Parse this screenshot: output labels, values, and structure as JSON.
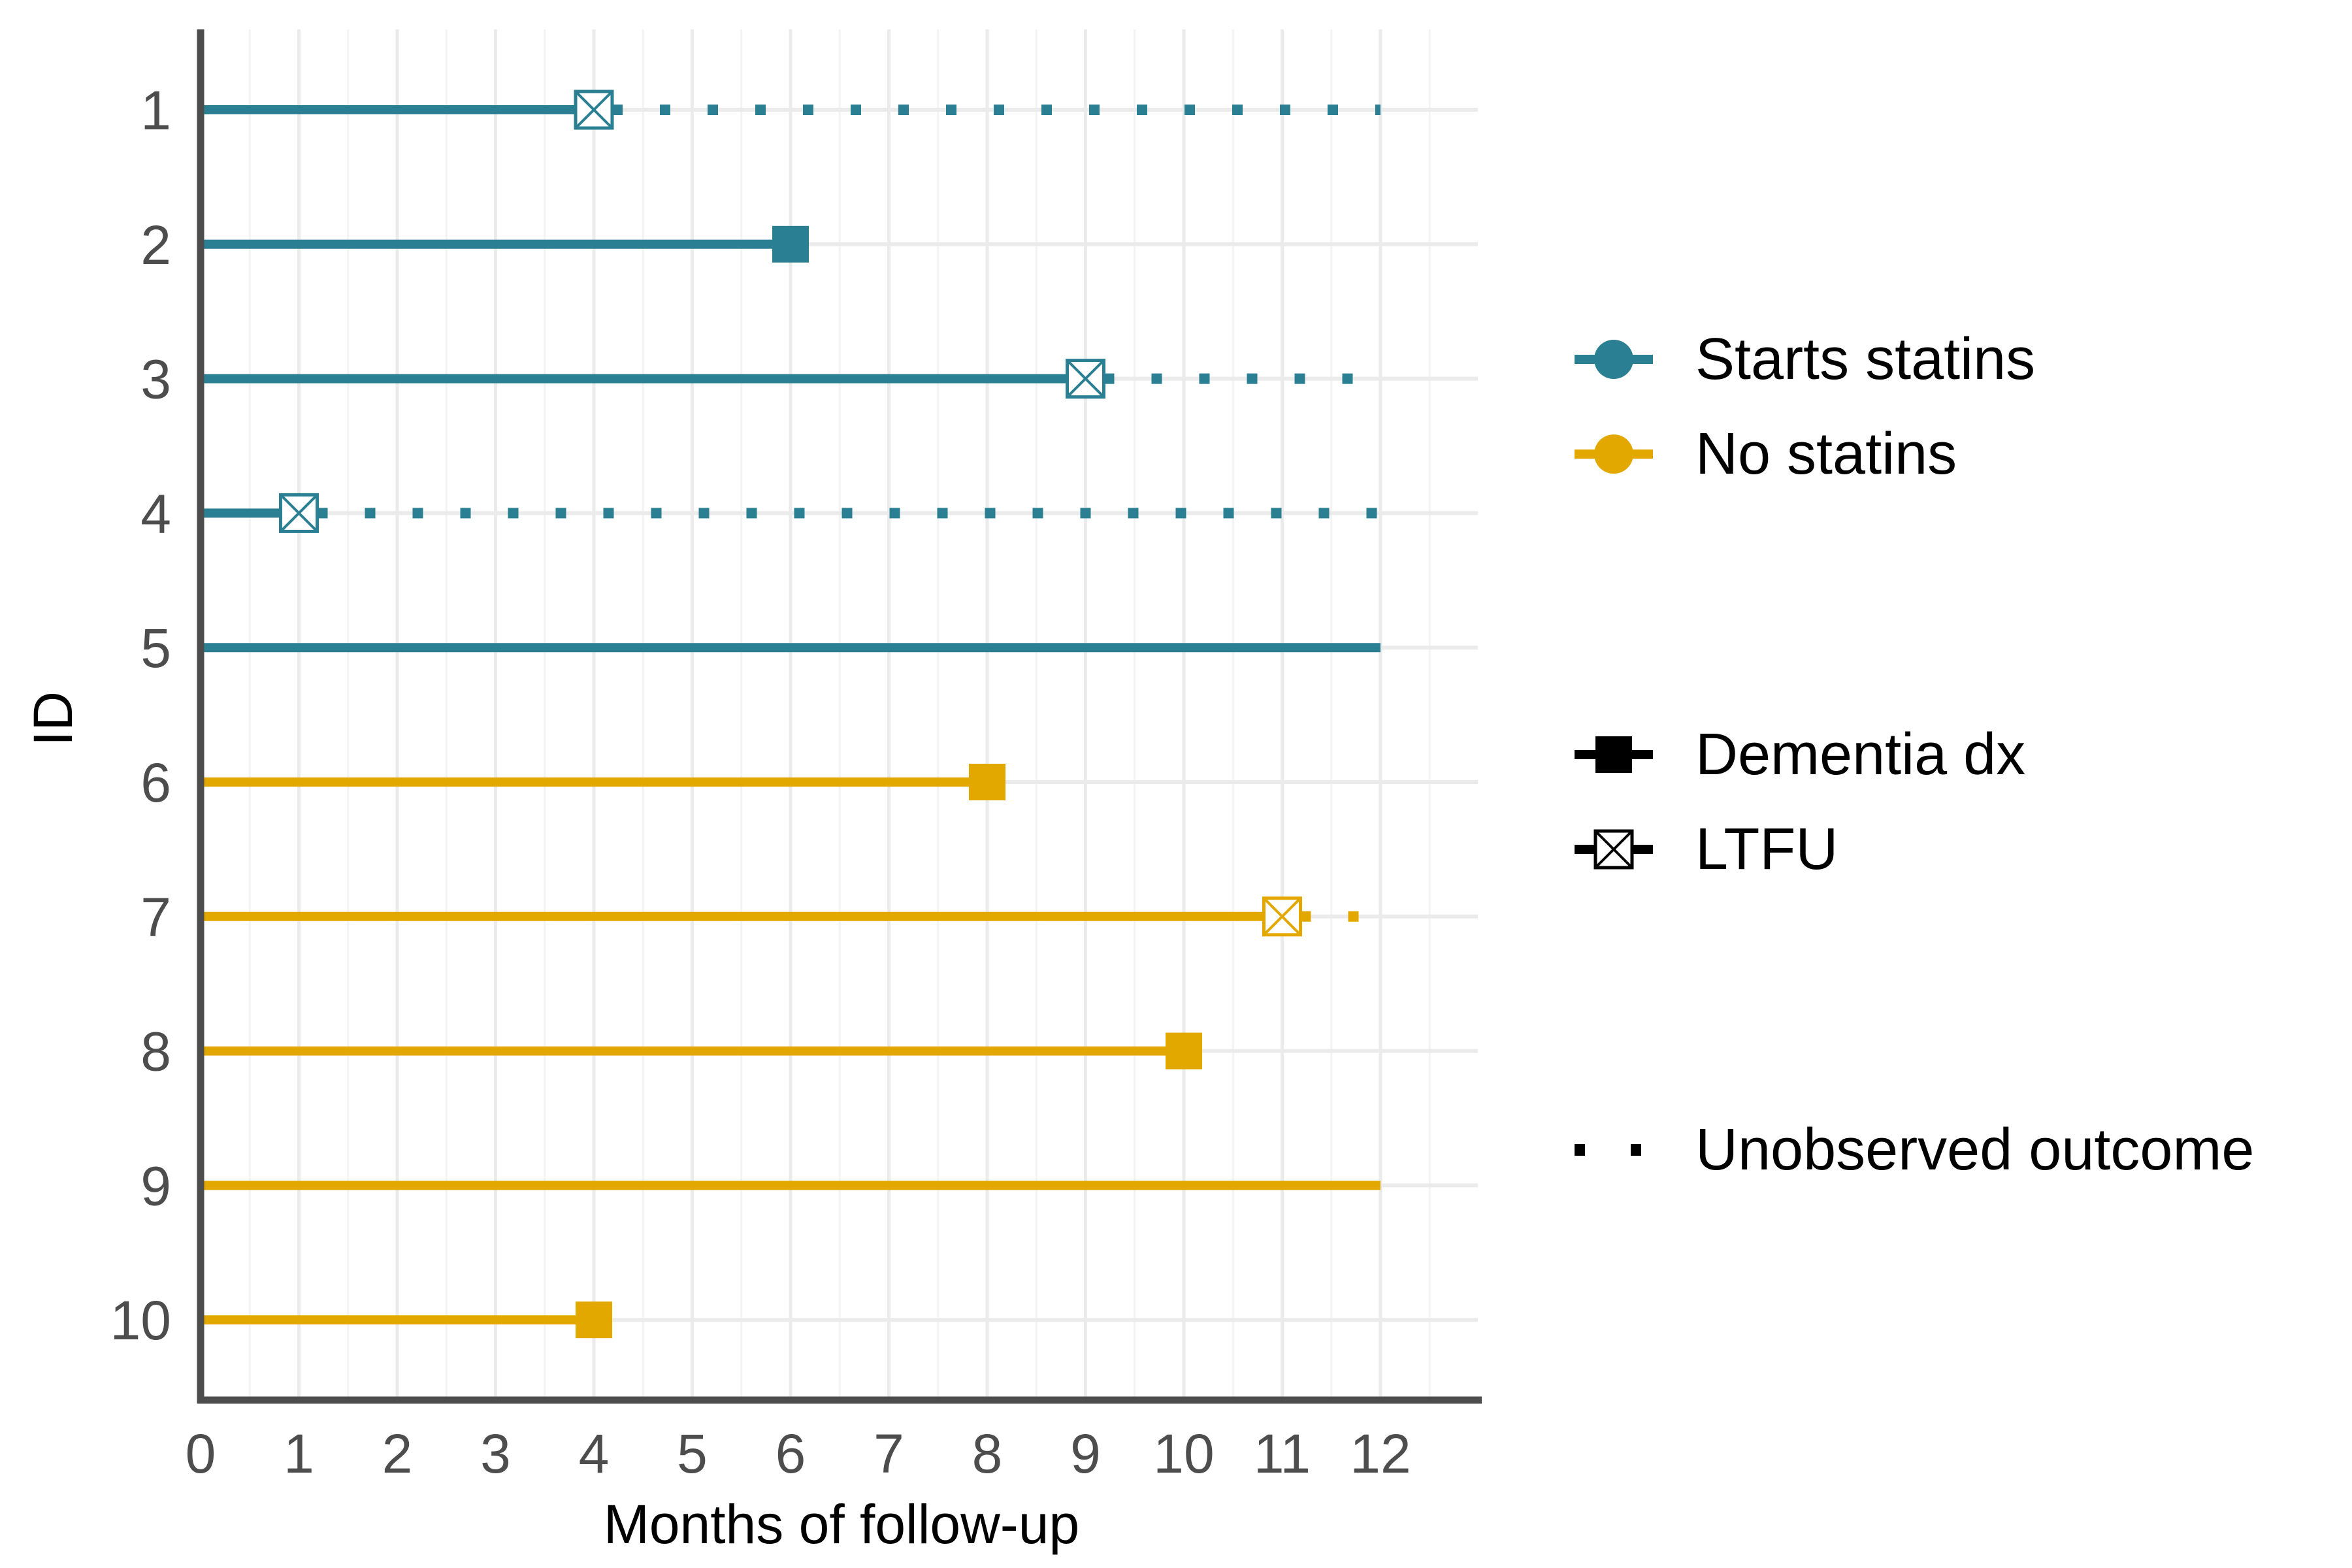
{
  "chart_data": {
    "type": "timeline",
    "xlabel": "Months of follow-up",
    "ylabel": "ID",
    "xlim": [
      0,
      13
    ],
    "x_ticks": [
      0,
      1,
      2,
      3,
      4,
      5,
      6,
      7,
      8,
      9,
      10,
      11,
      12
    ],
    "categories": [
      "1",
      "2",
      "3",
      "4",
      "5",
      "6",
      "7",
      "8",
      "9",
      "10"
    ],
    "grid": true,
    "legend_position": "right",
    "colors": {
      "statins": "#2a7f93",
      "no_statins": "#e3a800"
    },
    "rows": [
      {
        "id": "1",
        "group": "statins",
        "observed_end": 4,
        "event": "LTFU",
        "unobserved_end": 12
      },
      {
        "id": "2",
        "group": "statins",
        "observed_end": 6,
        "event": "Dementia dx",
        "unobserved_end": null
      },
      {
        "id": "3",
        "group": "statins",
        "observed_end": 9,
        "event": "LTFU",
        "unobserved_end": 12
      },
      {
        "id": "4",
        "group": "statins",
        "observed_end": 1,
        "event": "LTFU",
        "unobserved_end": 12
      },
      {
        "id": "5",
        "group": "statins",
        "observed_end": 12,
        "event": null,
        "unobserved_end": null
      },
      {
        "id": "6",
        "group": "no_statins",
        "observed_end": 8,
        "event": "Dementia dx",
        "unobserved_end": null
      },
      {
        "id": "7",
        "group": "no_statins",
        "observed_end": 11,
        "event": "LTFU",
        "unobserved_end": 12
      },
      {
        "id": "8",
        "group": "no_statins",
        "observed_end": 10,
        "event": "Dementia dx",
        "unobserved_end": null
      },
      {
        "id": "9",
        "group": "no_statins",
        "observed_end": 12,
        "event": null,
        "unobserved_end": null
      },
      {
        "id": "10",
        "group": "no_statins",
        "observed_end": 4,
        "event": "Dementia dx",
        "unobserved_end": null
      }
    ],
    "legend": {
      "groups": [
        {
          "key": "statins",
          "label": "Starts statins"
        },
        {
          "key": "no_statins",
          "label": "No statins"
        }
      ],
      "events": [
        {
          "key": "dementia",
          "label": "Dementia dx"
        },
        {
          "key": "ltfu",
          "label": "LTFU"
        }
      ],
      "unobserved": {
        "label": "Unobserved outcome"
      }
    }
  }
}
